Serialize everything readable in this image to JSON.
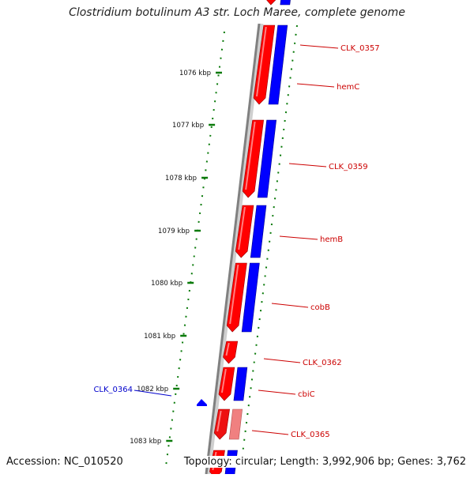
{
  "title": "Clostridium botulinum A3 str. Loch Maree, complete genome",
  "footer": {
    "accession": "Accession: NC_010520",
    "topology": "Topology: circular; Length: 3,992,906 bp; Genes: 3,762"
  },
  "colors": {
    "tick": "#0a7a0a",
    "forward_cds": "#ff0000",
    "reverse_cds": "#0000ff",
    "pseudo": "#f08080",
    "label_red": "#cc0000",
    "label_blue": "#0000cc",
    "backbone": "#808080"
  },
  "scale_ticks": [
    {
      "label": "1076 kbp"
    },
    {
      "label": "1077 kbp"
    },
    {
      "label": "1078 kbp"
    },
    {
      "label": "1079 kbp"
    },
    {
      "label": "1080 kbp"
    },
    {
      "label": "1081 kbp"
    },
    {
      "label": "1082 kbp"
    },
    {
      "label": "1083 kbp"
    }
  ],
  "gene_labels": [
    {
      "text": "CLK_0357",
      "color": "red"
    },
    {
      "text": "hemC",
      "color": "red"
    },
    {
      "text": "CLK_0359",
      "color": "red"
    },
    {
      "text": "hemB",
      "color": "red"
    },
    {
      "text": "cobB",
      "color": "red"
    },
    {
      "text": "CLK_0362",
      "color": "red"
    },
    {
      "text": "cbiC",
      "color": "red"
    },
    {
      "text": "CLK_0365",
      "color": "red"
    },
    {
      "text": "CLK_0364",
      "color": "blue"
    }
  ]
}
